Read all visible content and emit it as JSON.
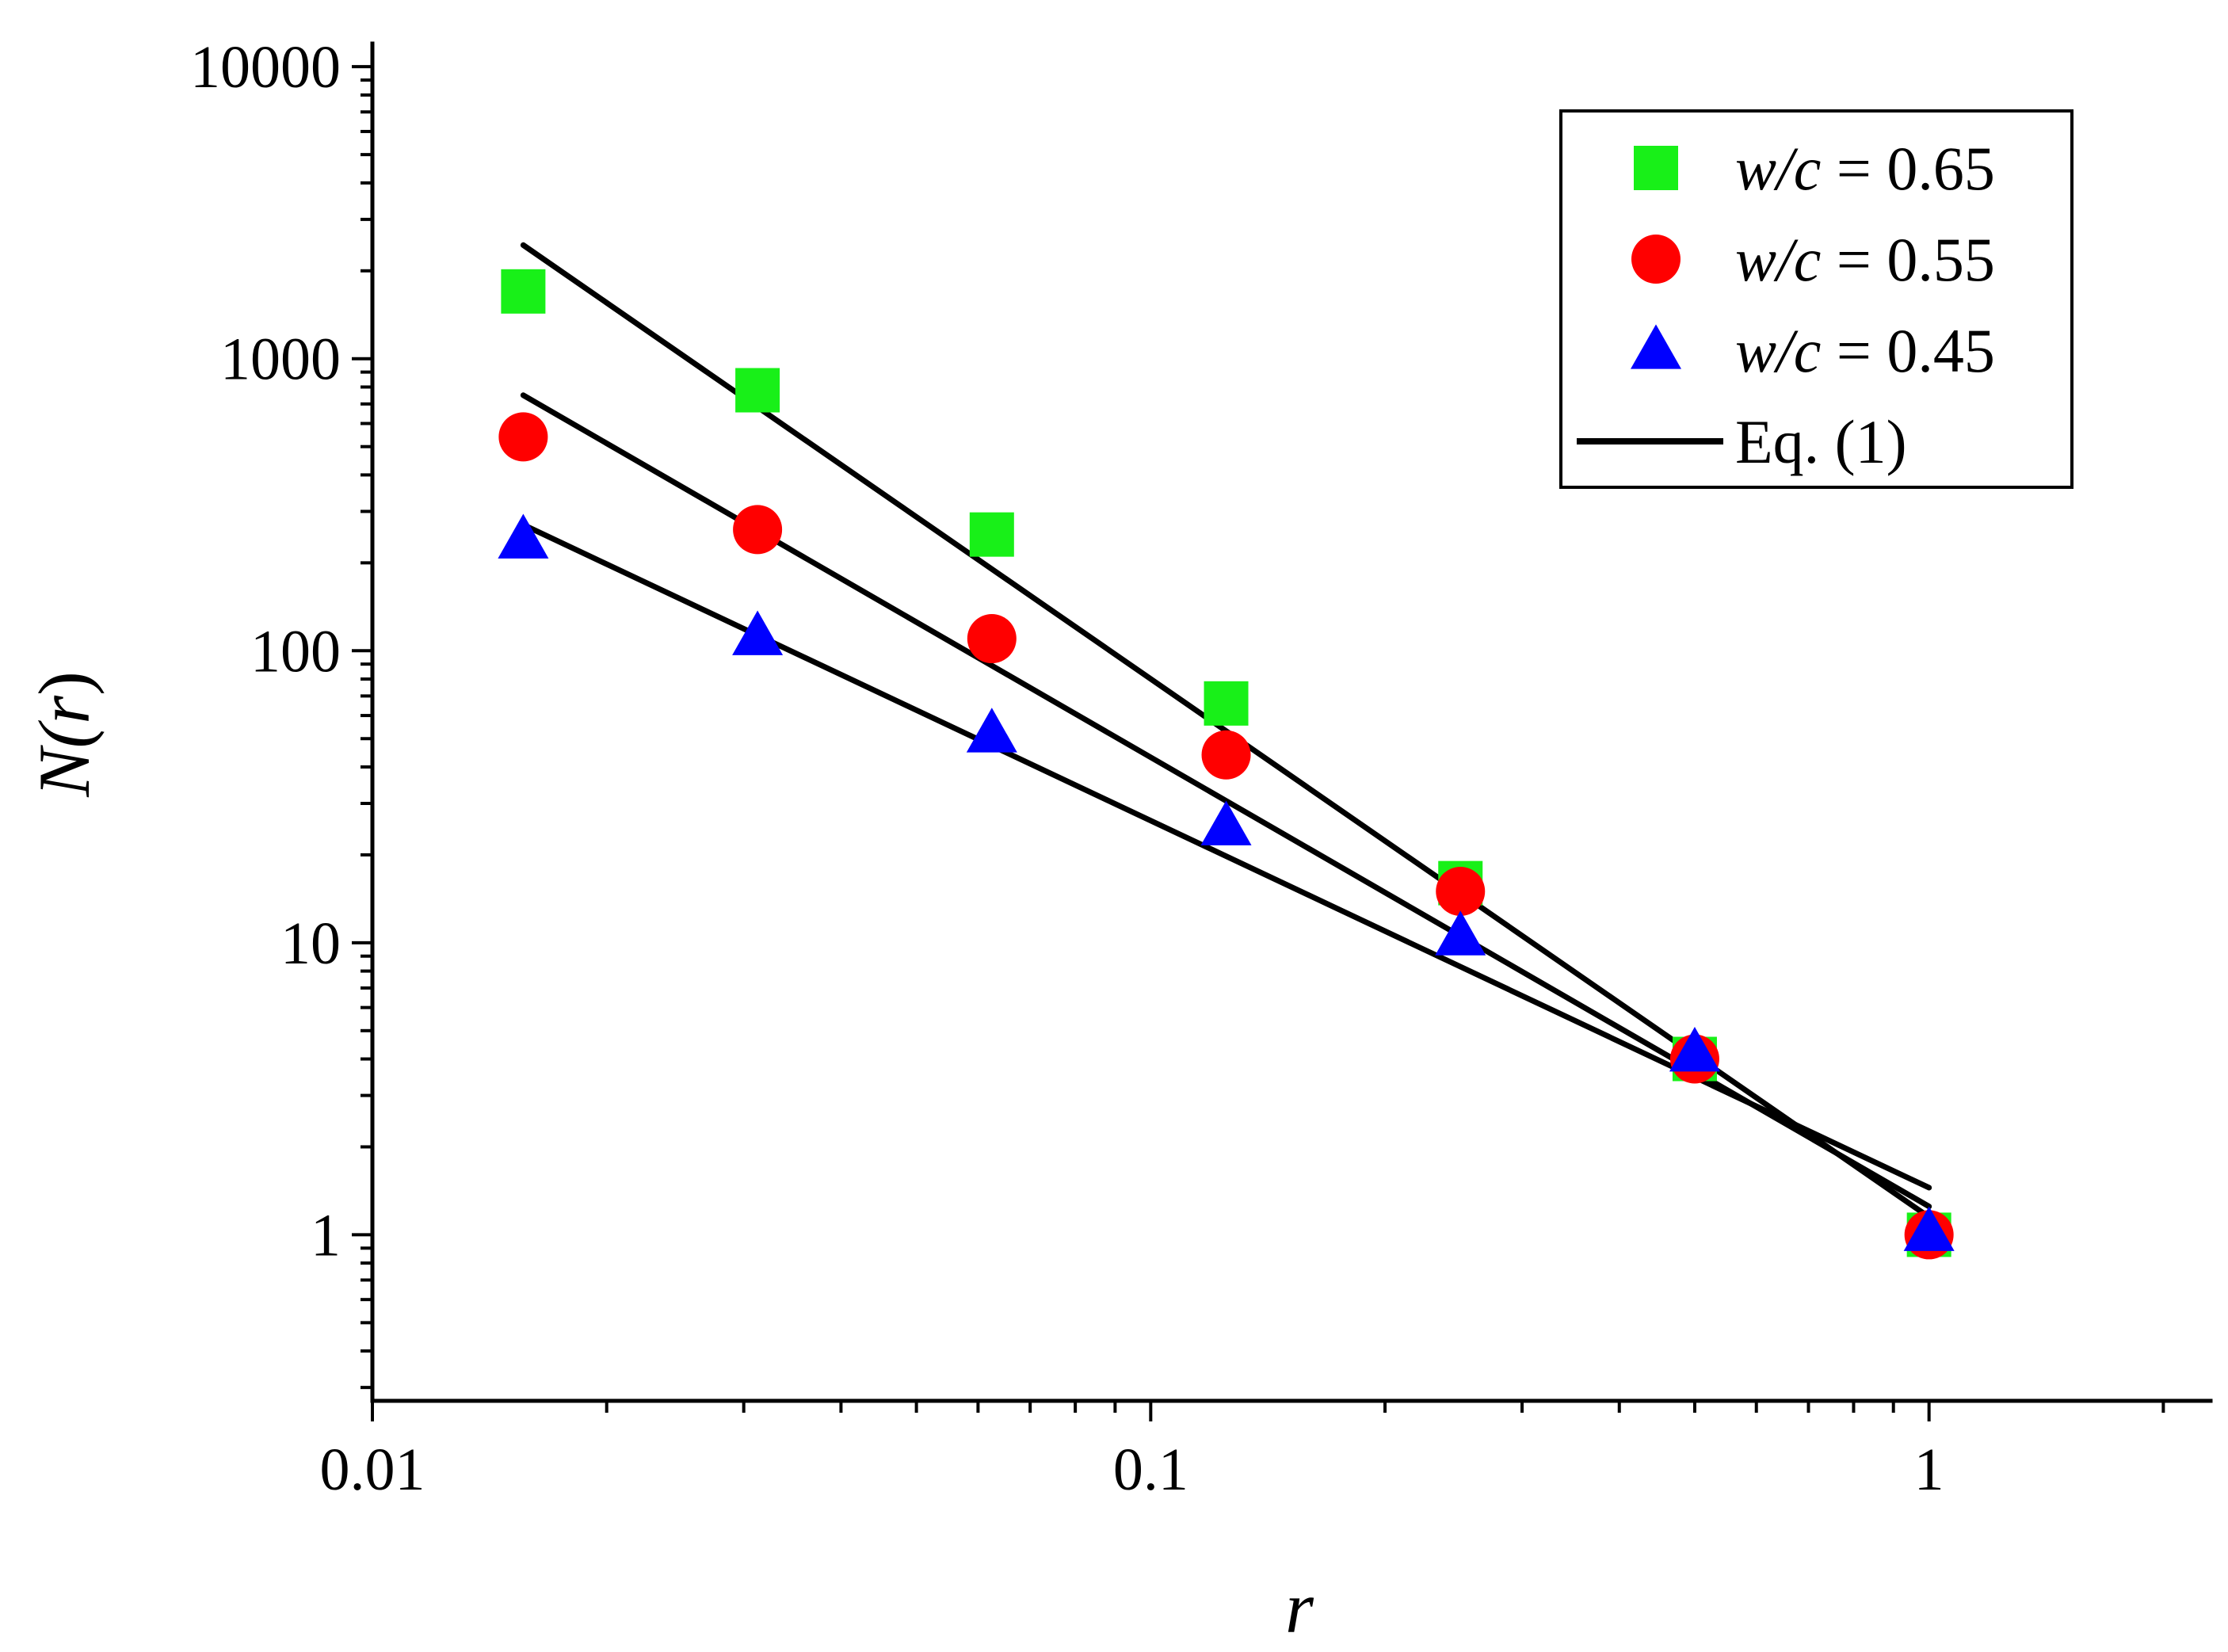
{
  "chart_data": {
    "type": "scatter",
    "title": "",
    "xlabel": "r",
    "ylabel_parts": [
      "N(",
      "r",
      ")"
    ],
    "xscale": "log",
    "yscale": "log",
    "xlim": [
      0.01,
      2.3
    ],
    "ylim": [
      0.27,
      12000
    ],
    "grid": false,
    "legend_position": "top-right",
    "x_ticks": [
      {
        "value": 0.01,
        "label": "0.01"
      },
      {
        "value": 0.1,
        "label": "0.1"
      },
      {
        "value": 1,
        "label": "1"
      }
    ],
    "y_ticks": [
      {
        "value": 1,
        "label": "1"
      },
      {
        "value": 10,
        "label": "10"
      },
      {
        "value": 100,
        "label": "100"
      },
      {
        "value": 1000,
        "label": "1000"
      },
      {
        "value": 10000,
        "label": "10000"
      }
    ],
    "series": [
      {
        "name_prefix": "w/c",
        "name_suffix": " = 0.65",
        "marker": "square",
        "color": "#18f018",
        "x": [
          0.015625,
          0.03125,
          0.0625,
          0.125,
          0.25,
          0.5,
          1
        ],
        "y": [
          1700,
          780,
          250,
          66,
          16,
          4,
          1
        ],
        "fit_line": {
          "x": [
            0.015625,
            1
          ],
          "y": [
            2450,
            1.15
          ]
        }
      },
      {
        "name_prefix": "w/c",
        "name_suffix": " = 0.55",
        "marker": "circle",
        "color": "#ff0000",
        "x": [
          0.015625,
          0.03125,
          0.0625,
          0.125,
          0.25,
          0.5,
          1
        ],
        "y": [
          540,
          260,
          110,
          44,
          15,
          4,
          1
        ],
        "fit_line": {
          "x": [
            0.015625,
            1
          ],
          "y": [
            750,
            1.25
          ]
        }
      },
      {
        "name_prefix": "w/c",
        "name_suffix": " = 0.45",
        "marker": "triangle",
        "color": "#0000ff",
        "x": [
          0.015625,
          0.03125,
          0.0625,
          0.125,
          0.25,
          0.5,
          1
        ],
        "y": [
          240,
          112,
          52,
          25,
          10.5,
          4.2,
          1.02
        ],
        "fit_line": {
          "x": [
            0.015625,
            1
          ],
          "y": [
            270,
            1.45
          ]
        }
      }
    ],
    "fit_legend_label": "Eq. (1)",
    "fit_color": "#000000"
  }
}
